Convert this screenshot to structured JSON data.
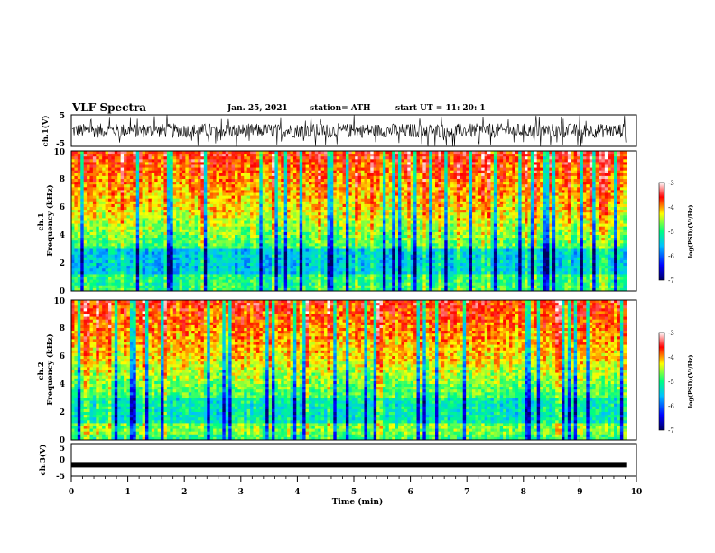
{
  "header": {
    "title": "VLF Spectra",
    "date": "Jan. 25, 2021",
    "station": "station= ATH",
    "start": "start  UT =   11: 20: 1"
  },
  "chart_data": [
    {
      "type": "line",
      "name": "ch1-waveform",
      "ylabel": "ch.1(V)",
      "ylim": [
        -5,
        5
      ],
      "ytick_labels": [
        "5",
        "-5"
      ],
      "xlim": [
        0,
        10
      ]
    },
    {
      "type": "heatmap",
      "name": "ch1-spectrogram",
      "ylabel": "ch.1\nFrequency  (kHz)",
      "ylim": [
        0,
        10
      ],
      "ytick_labels": [
        "0",
        "2",
        "4",
        "6",
        "8",
        "10"
      ],
      "xlim": [
        0,
        10
      ],
      "data_end_min": 9.82,
      "colorbar": {
        "label": "log(PSD)(V²/Hz)",
        "range": [
          -7,
          -3
        ],
        "tick_labels": [
          "-3",
          "-4",
          "-5",
          "-6",
          "-7"
        ]
      }
    },
    {
      "type": "heatmap",
      "name": "ch2-spectrogram",
      "ylabel": "ch.2\nFrequency  (kHz)",
      "ylim": [
        0,
        10
      ],
      "ytick_labels": [
        "0",
        "2",
        "4",
        "6",
        "8",
        "10"
      ],
      "xlim": [
        0,
        10
      ],
      "data_end_min": 9.82,
      "colorbar": {
        "label": "log(PSD)(V²/Hz)",
        "range": [
          -7,
          -3
        ],
        "tick_labels": [
          "-3",
          "-4",
          "-5",
          "-6",
          "-7"
        ]
      }
    },
    {
      "type": "line",
      "name": "ch3-waveform",
      "ylabel": "ch.3(V)",
      "ylim": [
        -5,
        5
      ],
      "ytick_labels": [
        "5",
        "0",
        "-5"
      ],
      "xlim": [
        0,
        10
      ],
      "approx_level_v": -1.5
    }
  ],
  "xaxis": {
    "label": "Time  (min)",
    "tick_labels": [
      "0",
      "1",
      "2",
      "3",
      "4",
      "5",
      "6",
      "7",
      "8",
      "9",
      "10"
    ]
  },
  "colors": {
    "frame": "#000000",
    "colormap": [
      "#000060",
      "#0000ff",
      "#00c0ff",
      "#00ff80",
      "#ffff00",
      "#ff0000",
      "#ffffff"
    ]
  }
}
